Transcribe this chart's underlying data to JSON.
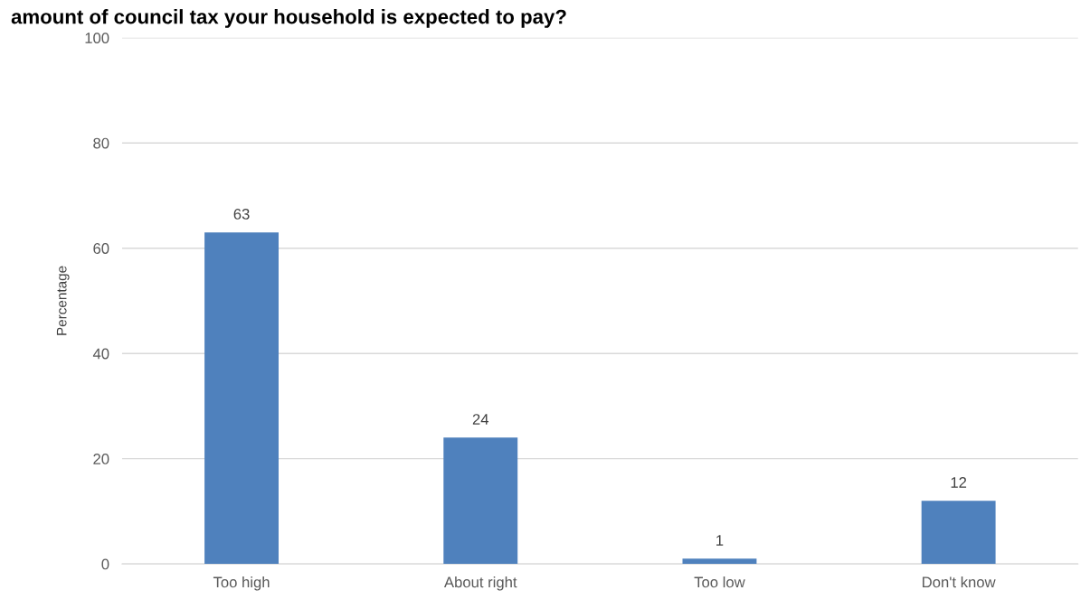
{
  "chart_data": {
    "type": "bar",
    "title": "amount of council tax your household is expected to pay?",
    "ylabel": "Percentage",
    "categories": [
      "Too high",
      "About right",
      "Too low",
      "Don't know"
    ],
    "values": [
      63,
      24,
      1,
      12
    ],
    "color": "#4f81bd",
    "ylim": [
      0,
      100
    ],
    "yticks": [
      0,
      20,
      40,
      60,
      80,
      100
    ],
    "grid": "y",
    "data_labels": true
  }
}
